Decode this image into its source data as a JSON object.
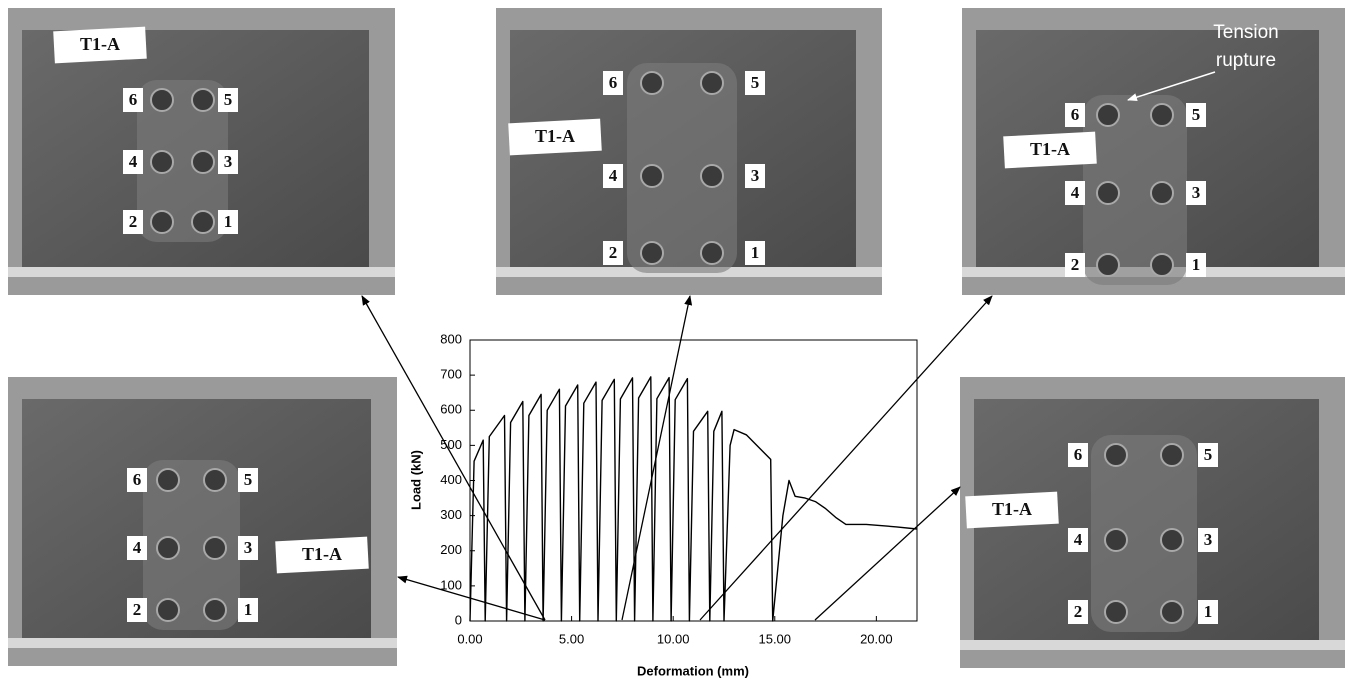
{
  "chart_data": {
    "type": "line",
    "xlabel": "Deformation (mm)",
    "ylabel": "Load (kN)",
    "x": [
      0,
      0.2,
      0.65,
      0.75,
      0.95,
      1.7,
      1.8,
      2.0,
      2.6,
      2.7,
      2.9,
      3.5,
      3.6,
      3.8,
      4.4,
      4.5,
      4.7,
      5.3,
      5.4,
      5.6,
      6.2,
      6.3,
      6.5,
      7.1,
      7.2,
      7.4,
      8.0,
      8.1,
      8.3,
      8.9,
      9.0,
      9.2,
      9.8,
      9.9,
      10.1,
      10.7,
      10.8,
      11.0,
      11.7,
      11.8,
      12.0,
      12.4,
      12.5,
      12.8,
      13.0,
      13.6,
      14.8,
      14.9,
      15.4,
      15.7,
      16.0,
      16.5,
      17.0,
      17.5,
      18.0,
      18.5,
      19.5,
      21,
      22
    ],
    "series": [
      {
        "color": "#000000",
        "values": [
          0,
          455,
          515,
          0,
          525,
          585,
          0,
          565,
          625,
          0,
          585,
          645,
          0,
          600,
          660,
          0,
          612,
          672,
          0,
          620,
          680,
          0,
          628,
          688,
          0,
          632,
          692,
          0,
          635,
          695,
          0,
          633,
          693,
          0,
          630,
          690,
          0,
          540,
          597,
          0,
          540,
          597,
          0,
          500,
          545,
          530,
          460,
          0,
          300,
          400,
          355,
          350,
          340,
          320,
          295,
          275,
          275,
          268,
          262
        ]
      }
    ],
    "xlim": [
      0,
      22
    ],
    "ylim": [
      0,
      800
    ],
    "xticks": [
      {
        "value": 0,
        "label": "0.00"
      },
      {
        "value": 5,
        "label": "5.00"
      },
      {
        "value": 10,
        "label": "10.00"
      },
      {
        "value": 15,
        "label": "15.00"
      },
      {
        "value": 20,
        "label": "20.00"
      }
    ],
    "yticks": [
      0,
      100,
      200,
      300,
      400,
      500,
      600,
      700,
      800
    ]
  },
  "photos": [
    {
      "specimen": "T1-A",
      "bolts": [
        "6",
        "5",
        "4",
        "3",
        "2",
        "1"
      ]
    },
    {
      "specimen": "T1-A",
      "bolts": [
        "6",
        "5",
        "4",
        "3",
        "2",
        "1"
      ]
    },
    {
      "specimen": "T1-A",
      "bolts": [
        "6",
        "5",
        "4",
        "3",
        "2",
        "1"
      ],
      "annotation": [
        "Tension",
        "rupture"
      ]
    },
    {
      "specimen": "T1-A",
      "bolts": [
        "6",
        "5",
        "4",
        "3",
        "2",
        "1"
      ]
    },
    {
      "specimen": "T1-A",
      "bolts": [
        "6",
        "5",
        "4",
        "3",
        "2",
        "1"
      ]
    }
  ]
}
